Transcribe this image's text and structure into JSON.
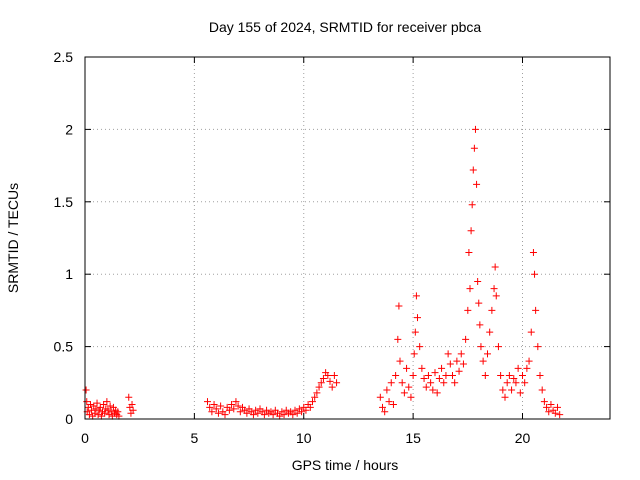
{
  "chart_data": {
    "type": "scatter",
    "title": "Day 155 of 2024, SRMTID for receiver pbca",
    "xlabel": "GPS time / hours",
    "ylabel": "SRMTID / TECUs",
    "xlim": [
      0,
      24
    ],
    "ylim": [
      0,
      2.5
    ],
    "x_ticks": [
      0,
      5,
      10,
      15,
      20
    ],
    "x_tick_labels": [
      "0",
      "5",
      "10",
      "15",
      "20"
    ],
    "y_ticks": [
      0,
      0.5,
      1,
      1.5,
      2,
      2.5
    ],
    "y_tick_labels": [
      "0",
      "0.5",
      "1",
      "1.5",
      "2",
      "2.5"
    ],
    "grid": true,
    "marker": "+",
    "series": [
      {
        "name": "SRMTID",
        "color": "#ff0000",
        "points": [
          [
            0.05,
            0.2
          ],
          [
            0.08,
            0.12
          ],
          [
            0.1,
            0.05
          ],
          [
            0.15,
            0.08
          ],
          [
            0.2,
            0.03
          ],
          [
            0.25,
            0.1
          ],
          [
            0.3,
            0.06
          ],
          [
            0.35,
            0.02
          ],
          [
            0.4,
            0.09
          ],
          [
            0.45,
            0.04
          ],
          [
            0.5,
            0.07
          ],
          [
            0.55,
            0.11
          ],
          [
            0.6,
            0.03
          ],
          [
            0.65,
            0.06
          ],
          [
            0.7,
            0.08
          ],
          [
            0.75,
            0.02
          ],
          [
            0.8,
            0.05
          ],
          [
            0.85,
            0.1
          ],
          [
            0.9,
            0.04
          ],
          [
            0.95,
            0.07
          ],
          [
            1.0,
            0.12
          ],
          [
            1.05,
            0.06
          ],
          [
            1.1,
            0.03
          ],
          [
            1.15,
            0.09
          ],
          [
            1.2,
            0.05
          ],
          [
            1.25,
            0.02
          ],
          [
            1.3,
            0.08
          ],
          [
            1.35,
            0.04
          ],
          [
            1.4,
            0.06
          ],
          [
            1.45,
            0.03
          ],
          [
            1.5,
            0.05
          ],
          [
            1.55,
            0.02
          ],
          [
            2.0,
            0.15
          ],
          [
            2.05,
            0.08
          ],
          [
            2.1,
            0.04
          ],
          [
            2.15,
            0.1
          ],
          [
            2.2,
            0.06
          ],
          [
            5.6,
            0.12
          ],
          [
            5.7,
            0.08
          ],
          [
            5.8,
            0.05
          ],
          [
            5.9,
            0.1
          ],
          [
            6.0,
            0.07
          ],
          [
            6.1,
            0.04
          ],
          [
            6.2,
            0.09
          ],
          [
            6.3,
            0.05
          ],
          [
            6.4,
            0.03
          ],
          [
            6.5,
            0.08
          ],
          [
            6.6,
            0.06
          ],
          [
            6.7,
            0.1
          ],
          [
            6.8,
            0.07
          ],
          [
            6.9,
            0.12
          ],
          [
            7.0,
            0.09
          ],
          [
            7.1,
            0.05
          ],
          [
            7.2,
            0.08
          ],
          [
            7.3,
            0.06
          ],
          [
            7.4,
            0.04
          ],
          [
            7.5,
            0.07
          ],
          [
            7.6,
            0.05
          ],
          [
            7.7,
            0.03
          ],
          [
            7.8,
            0.06
          ],
          [
            7.9,
            0.04
          ],
          [
            8.0,
            0.07
          ],
          [
            8.1,
            0.05
          ],
          [
            8.2,
            0.03
          ],
          [
            8.3,
            0.06
          ],
          [
            8.4,
            0.04
          ],
          [
            8.5,
            0.05
          ],
          [
            8.6,
            0.03
          ],
          [
            8.7,
            0.06
          ],
          [
            8.8,
            0.04
          ],
          [
            8.9,
            0.02
          ],
          [
            9.0,
            0.05
          ],
          [
            9.1,
            0.03
          ],
          [
            9.2,
            0.06
          ],
          [
            9.3,
            0.04
          ],
          [
            9.4,
            0.05
          ],
          [
            9.5,
            0.03
          ],
          [
            9.6,
            0.06
          ],
          [
            9.7,
            0.04
          ],
          [
            9.8,
            0.07
          ],
          [
            9.9,
            0.05
          ],
          [
            10.0,
            0.08
          ],
          [
            10.1,
            0.06
          ],
          [
            10.2,
            0.1
          ],
          [
            10.3,
            0.08
          ],
          [
            10.4,
            0.12
          ],
          [
            10.5,
            0.15
          ],
          [
            10.6,
            0.18
          ],
          [
            10.7,
            0.22
          ],
          [
            10.8,
            0.25
          ],
          [
            10.9,
            0.28
          ],
          [
            11.0,
            0.32
          ],
          [
            11.1,
            0.3
          ],
          [
            11.2,
            0.26
          ],
          [
            11.3,
            0.22
          ],
          [
            11.4,
            0.3
          ],
          [
            11.5,
            0.25
          ],
          [
            13.5,
            0.15
          ],
          [
            13.6,
            0.08
          ],
          [
            13.7,
            0.05
          ],
          [
            13.8,
            0.2
          ],
          [
            13.9,
            0.12
          ],
          [
            14.0,
            0.25
          ],
          [
            14.1,
            0.1
          ],
          [
            14.2,
            0.3
          ],
          [
            14.3,
            0.55
          ],
          [
            14.35,
            0.78
          ],
          [
            14.4,
            0.4
          ],
          [
            14.5,
            0.25
          ],
          [
            14.6,
            0.18
          ],
          [
            14.7,
            0.35
          ],
          [
            14.8,
            0.22
          ],
          [
            14.9,
            0.15
          ],
          [
            15.0,
            0.3
          ],
          [
            15.05,
            0.45
          ],
          [
            15.1,
            0.6
          ],
          [
            15.15,
            0.85
          ],
          [
            15.2,
            0.7
          ],
          [
            15.3,
            0.5
          ],
          [
            15.4,
            0.35
          ],
          [
            15.5,
            0.28
          ],
          [
            15.6,
            0.22
          ],
          [
            15.7,
            0.3
          ],
          [
            15.8,
            0.25
          ],
          [
            15.9,
            0.2
          ],
          [
            16.0,
            0.32
          ],
          [
            16.1,
            0.18
          ],
          [
            16.2,
            0.28
          ],
          [
            16.3,
            0.35
          ],
          [
            16.4,
            0.25
          ],
          [
            16.5,
            0.3
          ],
          [
            16.6,
            0.45
          ],
          [
            16.7,
            0.38
          ],
          [
            16.8,
            0.3
          ],
          [
            16.9,
            0.25
          ],
          [
            17.0,
            0.4
          ],
          [
            17.1,
            0.33
          ],
          [
            17.2,
            0.45
          ],
          [
            17.3,
            0.38
          ],
          [
            17.4,
            0.55
          ],
          [
            17.5,
            0.75
          ],
          [
            17.55,
            1.15
          ],
          [
            17.6,
            0.9
          ],
          [
            17.65,
            1.3
          ],
          [
            17.7,
            1.48
          ],
          [
            17.75,
            1.72
          ],
          [
            17.8,
            1.87
          ],
          [
            17.85,
            2.0
          ],
          [
            17.9,
            1.62
          ],
          [
            17.95,
            0.95
          ],
          [
            18.0,
            0.8
          ],
          [
            18.05,
            0.65
          ],
          [
            18.1,
            0.5
          ],
          [
            18.2,
            0.4
          ],
          [
            18.3,
            0.3
          ],
          [
            18.4,
            0.45
          ],
          [
            18.5,
            0.6
          ],
          [
            18.6,
            0.75
          ],
          [
            18.7,
            0.9
          ],
          [
            18.75,
            1.05
          ],
          [
            18.8,
            0.85
          ],
          [
            18.9,
            0.5
          ],
          [
            19.0,
            0.3
          ],
          [
            19.1,
            0.2
          ],
          [
            19.2,
            0.15
          ],
          [
            19.3,
            0.25
          ],
          [
            19.4,
            0.3
          ],
          [
            19.5,
            0.2
          ],
          [
            19.6,
            0.28
          ],
          [
            19.7,
            0.25
          ],
          [
            19.8,
            0.35
          ],
          [
            19.9,
            0.18
          ],
          [
            20.0,
            0.3
          ],
          [
            20.1,
            0.25
          ],
          [
            20.2,
            0.35
          ],
          [
            20.3,
            0.4
          ],
          [
            20.4,
            0.6
          ],
          [
            20.5,
            1.15
          ],
          [
            20.55,
            1.0
          ],
          [
            20.6,
            0.75
          ],
          [
            20.7,
            0.5
          ],
          [
            20.8,
            0.3
          ],
          [
            20.9,
            0.2
          ],
          [
            21.0,
            0.12
          ],
          [
            21.1,
            0.08
          ],
          [
            21.2,
            0.05
          ],
          [
            21.3,
            0.1
          ],
          [
            21.4,
            0.06
          ],
          [
            21.5,
            0.04
          ],
          [
            21.6,
            0.08
          ],
          [
            21.7,
            0.03
          ]
        ]
      }
    ]
  }
}
